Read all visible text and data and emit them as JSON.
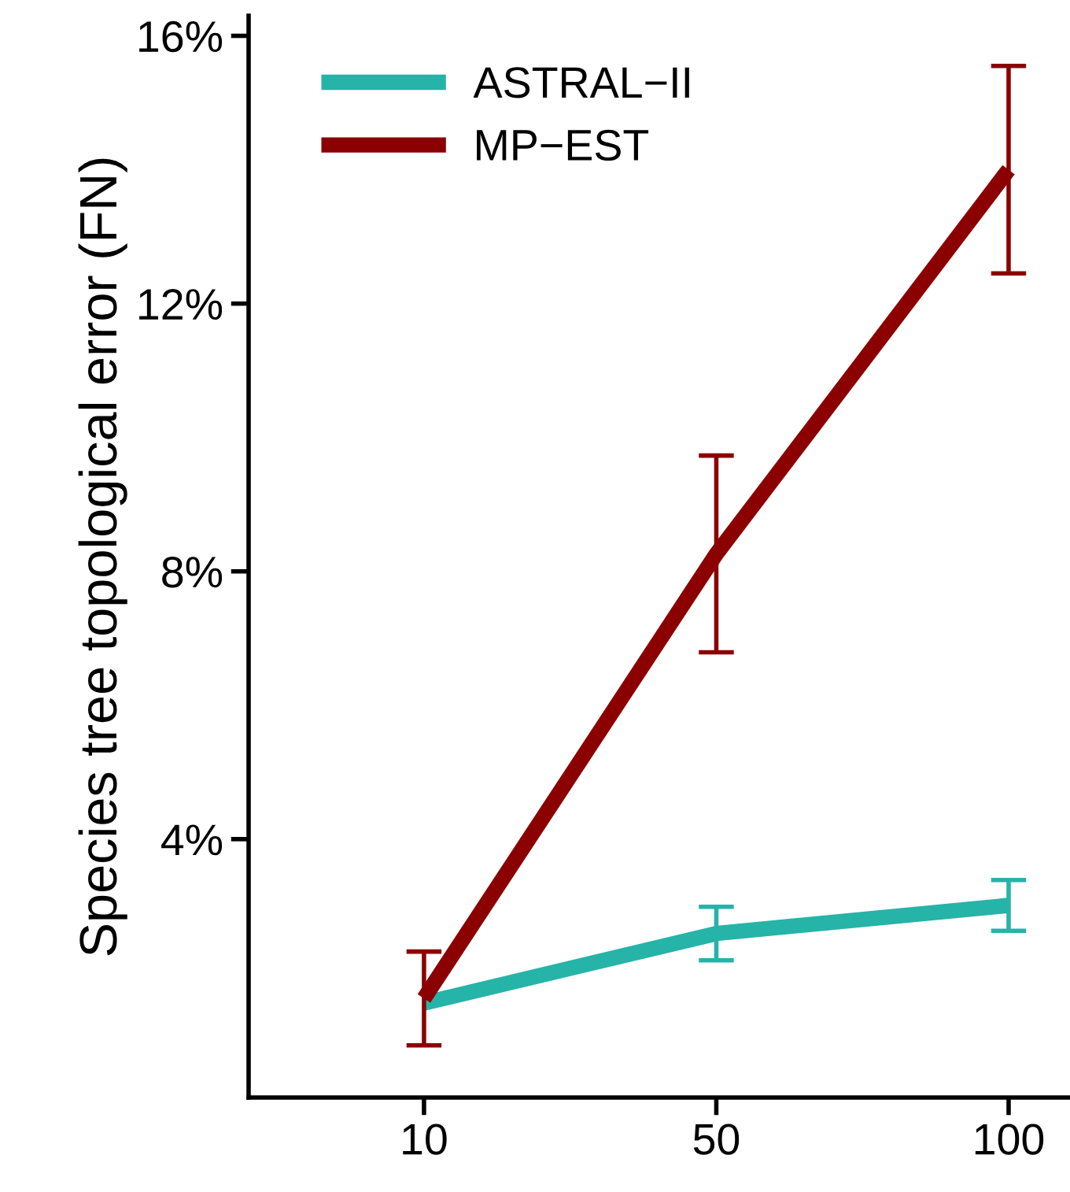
{
  "chart_data": {
    "type": "line",
    "ylabel": "Species tree topological error (FN)",
    "categories": [
      "10",
      "50",
      "100"
    ],
    "series": [
      {
        "name": "ASTRAL−II",
        "color": "#26b3a8",
        "values": [
          1.55,
          2.59,
          3.01
        ],
        "errors": [
          null,
          0.4,
          0.38
        ]
      },
      {
        "name": "MP−EST",
        "color": "#8b0000",
        "values": [
          1.62,
          8.26,
          14.0
        ],
        "errors": [
          0.7,
          1.47,
          1.55
        ]
      }
    ],
    "ylim": [
      0.14,
      16.3
    ],
    "yticks": [
      {
        "value": 4,
        "label": "4%"
      },
      {
        "value": 8,
        "label": "8%"
      },
      {
        "value": 12,
        "label": "12%"
      },
      {
        "value": 16,
        "label": "16%"
      }
    ],
    "grid": false,
    "legend": "top left",
    "marker": "none",
    "line_style": "solid"
  }
}
